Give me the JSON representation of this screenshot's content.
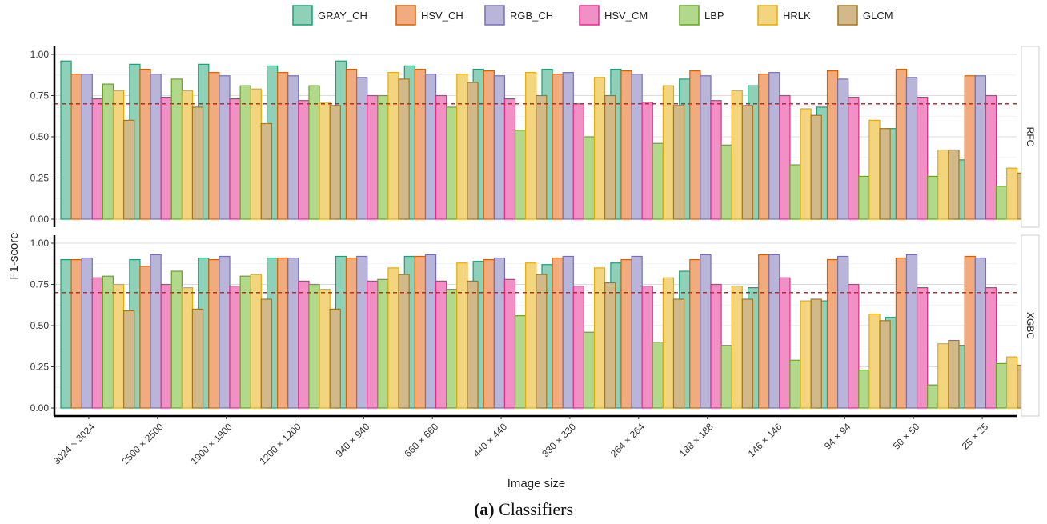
{
  "chart_data": {
    "type": "bar",
    "xlabel": "Image size",
    "ylabel": "F1-score",
    "ylim": [
      0,
      1.05
    ],
    "yticks": [
      0.0,
      0.25,
      0.5,
      0.75,
      1.0
    ],
    "ytick_labels": [
      "0.00",
      "0.25",
      "0.50",
      "0.75",
      "1.00"
    ],
    "threshold": 0.7,
    "legend_position": "top",
    "categories": [
      "3024 × 3024",
      "2500 × 2500",
      "1900 × 1900",
      "1200 × 1200",
      "940 × 940",
      "660 × 660",
      "440 × 440",
      "330 × 330",
      "264 × 264",
      "188 × 188",
      "146 × 146",
      "94 × 94",
      "50 × 50",
      "25 × 25"
    ],
    "series_styles": [
      {
        "name": "GRAY_CH",
        "fill": "#8fd0b8",
        "stroke": "#1b9e77"
      },
      {
        "name": "HSV_CH",
        "fill": "#f0ab7f",
        "stroke": "#d95f02"
      },
      {
        "name": "RGB_CH",
        "fill": "#b9b5d9",
        "stroke": "#7570b3"
      },
      {
        "name": "HSV_CM",
        "fill": "#f190c5",
        "stroke": "#e7298a"
      },
      {
        "name": "LBP",
        "fill": "#b2d88c",
        "stroke": "#66a61e"
      },
      {
        "name": "HRLK",
        "fill": "#f3d57f",
        "stroke": "#e6ab02"
      },
      {
        "name": "GLCM",
        "fill": "#d2b98a",
        "stroke": "#a6761d"
      }
    ],
    "panels": [
      {
        "label": "RFC",
        "series": [
          {
            "name": "GRAY_CH",
            "values": [
              0.96,
              0.94,
              0.94,
              0.93,
              0.96,
              0.93,
              0.91,
              0.91,
              0.91,
              0.85,
              0.81,
              0.68,
              0.55,
              0.36
            ]
          },
          {
            "name": "HSV_CH",
            "values": [
              0.88,
              0.91,
              0.89,
              0.89,
              0.91,
              0.91,
              0.9,
              0.88,
              0.9,
              0.9,
              0.88,
              0.9,
              0.91,
              0.87
            ]
          },
          {
            "name": "RGB_CH",
            "values": [
              0.88,
              0.88,
              0.87,
              0.87,
              0.86,
              0.88,
              0.87,
              0.89,
              0.88,
              0.87,
              0.89,
              0.85,
              0.86,
              0.87
            ]
          },
          {
            "name": "HSV_CM",
            "values": [
              0.73,
              0.74,
              0.73,
              0.72,
              0.75,
              0.75,
              0.73,
              0.7,
              0.71,
              0.72,
              0.75,
              0.74,
              0.74,
              0.75
            ]
          },
          {
            "name": "LBP",
            "values": [
              0.82,
              0.85,
              0.81,
              0.81,
              0.75,
              0.68,
              0.54,
              0.5,
              0.46,
              0.45,
              0.33,
              0.26,
              0.26,
              0.2
            ]
          },
          {
            "name": "HRLK",
            "values": [
              0.78,
              0.78,
              0.79,
              0.71,
              0.89,
              0.88,
              0.89,
              0.86,
              0.81,
              0.78,
              0.67,
              0.6,
              0.42,
              0.31
            ]
          },
          {
            "name": "GLCM",
            "values": [
              0.6,
              0.68,
              0.58,
              0.69,
              0.85,
              0.83,
              0.75,
              0.75,
              0.69,
              0.69,
              0.63,
              0.55,
              0.42,
              0.28
            ]
          }
        ]
      },
      {
        "label": "XGBC",
        "series": [
          {
            "name": "GRAY_CH",
            "values": [
              0.9,
              0.9,
              0.91,
              0.91,
              0.92,
              0.92,
              0.89,
              0.87,
              0.88,
              0.83,
              0.73,
              0.65,
              0.55,
              0.38
            ]
          },
          {
            "name": "HSV_CH",
            "values": [
              0.9,
              0.86,
              0.9,
              0.91,
              0.91,
              0.92,
              0.9,
              0.91,
              0.9,
              0.9,
              0.93,
              0.9,
              0.91,
              0.92
            ]
          },
          {
            "name": "RGB_CH",
            "values": [
              0.91,
              0.93,
              0.92,
              0.91,
              0.92,
              0.93,
              0.91,
              0.92,
              0.92,
              0.93,
              0.93,
              0.92,
              0.93,
              0.91
            ]
          },
          {
            "name": "HSV_CM",
            "values": [
              0.79,
              0.75,
              0.74,
              0.77,
              0.77,
              0.77,
              0.78,
              0.74,
              0.74,
              0.75,
              0.79,
              0.75,
              0.73,
              0.73
            ]
          },
          {
            "name": "LBP",
            "values": [
              0.8,
              0.83,
              0.8,
              0.75,
              0.78,
              0.72,
              0.56,
              0.46,
              0.4,
              0.38,
              0.29,
              0.23,
              0.14,
              0.27
            ]
          },
          {
            "name": "HRLK",
            "values": [
              0.75,
              0.73,
              0.81,
              0.72,
              0.85,
              0.88,
              0.88,
              0.85,
              0.79,
              0.74,
              0.65,
              0.57,
              0.39,
              0.31
            ]
          },
          {
            "name": "GLCM",
            "values": [
              0.59,
              0.6,
              0.66,
              0.6,
              0.81,
              0.77,
              0.81,
              0.76,
              0.66,
              0.66,
              0.66,
              0.53,
              0.41,
              0.26
            ]
          }
        ]
      }
    ]
  },
  "caption": {
    "label": "(a)",
    "text": " Classifiers"
  }
}
